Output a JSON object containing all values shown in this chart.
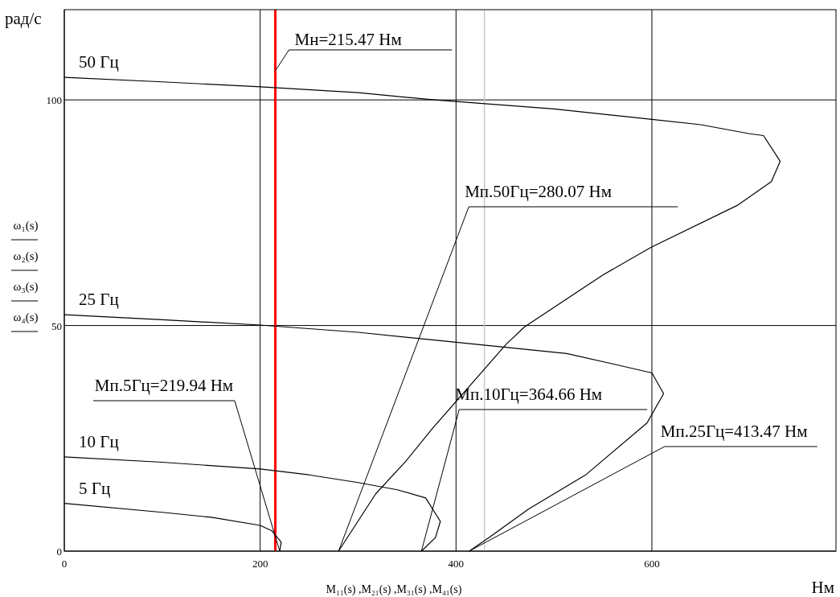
{
  "chart_data": {
    "type": "line",
    "xlabel": "Нм",
    "ylabel": "рад/с",
    "xlim": [
      0,
      788
    ],
    "ylim": [
      0,
      120
    ],
    "xticks": [
      0,
      200,
      400,
      600
    ],
    "yticks": [
      0,
      50,
      100
    ],
    "grid": true,
    "marker": "none",
    "line_style": "solid",
    "series": [
      {
        "name": "50 Гц",
        "color": "#000000",
        "x": [
          0,
          100,
          200,
          300,
          378,
          500,
          600,
          650,
          700,
          714,
          731,
          722,
          687,
          599,
          550,
          470,
          451,
          376,
          349,
          318,
          280.07
        ],
        "values": [
          105,
          104,
          102.9,
          101.6,
          100,
          98,
          95.7,
          94.5,
          92.5,
          92.1,
          86.4,
          81.9,
          76.6,
          67.3,
          61.2,
          49.7,
          45.8,
          27.2,
          20,
          12.7,
          0
        ]
      },
      {
        "name": "25 Гц",
        "color": "#000000",
        "x": [
          0,
          100,
          200,
          300,
          400,
          513,
          560,
          600,
          612,
          595,
          533,
          474,
          435,
          413.47
        ],
        "values": [
          52.4,
          51.3,
          50.1,
          48.5,
          46.3,
          43.8,
          41.5,
          39.5,
          34.9,
          28.4,
          17,
          9.3,
          3.2,
          0
        ]
      },
      {
        "name": "10 Гц",
        "color": "#000000",
        "x": [
          0,
          100,
          200,
          250,
          300,
          340,
          369,
          384,
          379,
          364.66
        ],
        "values": [
          20.9,
          19.7,
          18.2,
          16.9,
          15.2,
          13.6,
          11.8,
          6.6,
          3,
          0
        ]
      },
      {
        "name": "5 Гц",
        "color": "#000000",
        "x": [
          0,
          100,
          150,
          200,
          212,
          221.5,
          219.94
        ],
        "values": [
          10.6,
          8.6,
          7.5,
          5.7,
          4.5,
          2,
          0
        ]
      }
    ],
    "ref_lines": [
      {
        "axis": "x",
        "value": 215.47,
        "label": "Мн=215.47 Нм",
        "color": "#ff0000"
      },
      {
        "axis": "x",
        "value": 429,
        "color": "#c8c8c8"
      }
    ],
    "annotations": [
      {
        "text": "Мп.50Гц=280.07 Нм",
        "x": 280.07,
        "y": 0
      },
      {
        "text": "Мп.25Гц=413.47 Нм",
        "x": 413.47,
        "y": 0
      },
      {
        "text": "Мп.10Гц=364.66 Нм",
        "x": 364.66,
        "y": 0
      },
      {
        "text": "Мп.5Гц=219.94 Нм",
        "x": 219.94,
        "y": 0
      },
      "ω₁(s)",
      "ω₂(s)",
      "ω₃(s)",
      "ω₄(s)",
      "M₁₁(s) ,M₂₁(s) ,M₃₁(s) ,M₄₁(s)"
    ]
  }
}
